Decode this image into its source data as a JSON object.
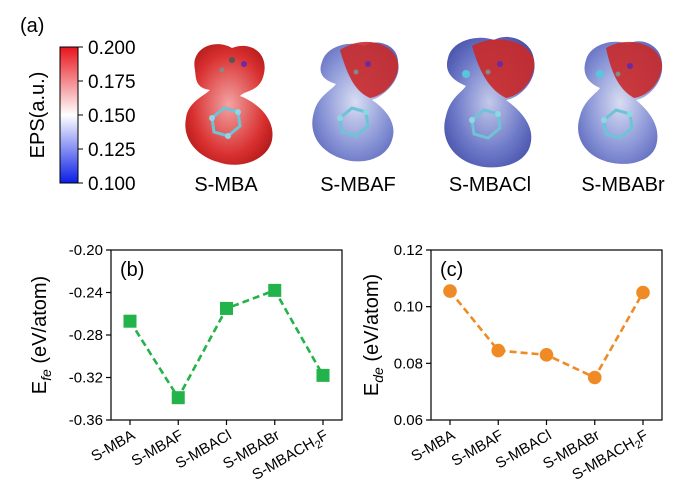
{
  "panel_a": {
    "tag": "(a)",
    "colorbar": {
      "label": "EPS(a.u.)",
      "ticks": [
        "0.200",
        "0.175",
        "0.150",
        "0.125",
        "0.100"
      ],
      "colors": {
        "top": "#e8141c",
        "middle": "#ffffff",
        "bottom": "#0a1ee6"
      }
    },
    "molecules": [
      {
        "label": "S-MBA"
      },
      {
        "label": "S-MBAF"
      },
      {
        "label": "S-MBACl"
      },
      {
        "label": "S-MBABr"
      }
    ]
  },
  "chart_data": [
    {
      "panel": "(b)",
      "type": "line",
      "ylabel": {
        "base": "E",
        "sub": "fe",
        "rest": " (eV/atom)"
      },
      "categories": [
        "S-MBA",
        "S-MBAF",
        "S-MBACl",
        "S-MBABr",
        "S-MBACH2F"
      ],
      "categories_display": [
        {
          "base": "S-MBA",
          "sub": "",
          "tail": ""
        },
        {
          "base": "S-MBAF",
          "sub": "",
          "tail": ""
        },
        {
          "base": "S-MBACl",
          "sub": "",
          "tail": ""
        },
        {
          "base": "S-MBABr",
          "sub": "",
          "tail": ""
        },
        {
          "base": "S-MBACH",
          "sub": "2",
          "tail": "F"
        }
      ],
      "series": [
        {
          "values": [
            -0.267,
            -0.339,
            -0.255,
            -0.238,
            -0.318
          ]
        }
      ],
      "ylim": [
        -0.36,
        -0.2
      ],
      "yticks": [
        -0.36,
        -0.32,
        -0.28,
        -0.24,
        -0.2
      ],
      "ytick_labels": [
        "-0.36",
        "-0.32",
        "-0.28",
        "-0.24",
        "-0.20"
      ],
      "marker": "square",
      "line_style": "dashed",
      "color": "#22b34a",
      "grid": false
    },
    {
      "panel": "(c)",
      "type": "line",
      "ylabel": {
        "base": "E",
        "sub": "de",
        "rest": " (eV/atom)"
      },
      "categories": [
        "S-MBA",
        "S-MBAF",
        "S-MBACl",
        "S-MBABr",
        "S-MBACH2F"
      ],
      "categories_display": [
        {
          "base": "S-MBA",
          "sub": "",
          "tail": ""
        },
        {
          "base": "S-MBAF",
          "sub": "",
          "tail": ""
        },
        {
          "base": "S-MBACl",
          "sub": "",
          "tail": ""
        },
        {
          "base": "S-MBABr",
          "sub": "",
          "tail": ""
        },
        {
          "base": "S-MBACH",
          "sub": "2",
          "tail": "F"
        }
      ],
      "series": [
        {
          "values": [
            0.1055,
            0.0845,
            0.083,
            0.075,
            0.105
          ]
        }
      ],
      "ylim": [
        0.06,
        0.12
      ],
      "yticks": [
        0.06,
        0.08,
        0.1,
        0.12
      ],
      "ytick_labels": [
        "0.06",
        "0.08",
        "0.10",
        "0.12"
      ],
      "marker": "circle",
      "line_style": "dashed",
      "color": "#f08a24",
      "grid": false
    }
  ]
}
